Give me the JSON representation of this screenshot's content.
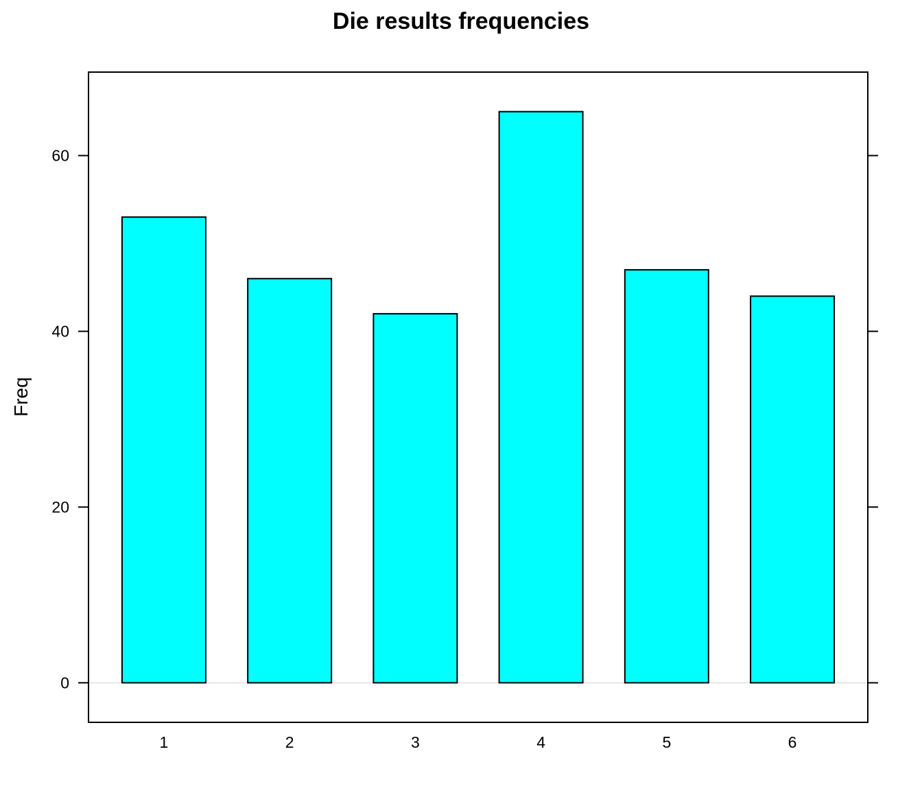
{
  "chart_data": {
    "type": "bar",
    "title": "Die results frequencies",
    "xlabel": "",
    "ylabel": "Freq",
    "categories": [
      "1",
      "2",
      "3",
      "4",
      "5",
      "6"
    ],
    "values": [
      53,
      46,
      42,
      65,
      47,
      44
    ],
    "ylim": [
      -4.5,
      69.5
    ],
    "yticks": [
      0,
      20,
      40,
      60
    ],
    "grid": false,
    "baseline_line": true,
    "legend": "none",
    "colors": {
      "bar_fill": "#00FFFF",
      "bar_stroke": "#000000",
      "baseline": "#E6E6E6",
      "frame": "#000000"
    }
  }
}
